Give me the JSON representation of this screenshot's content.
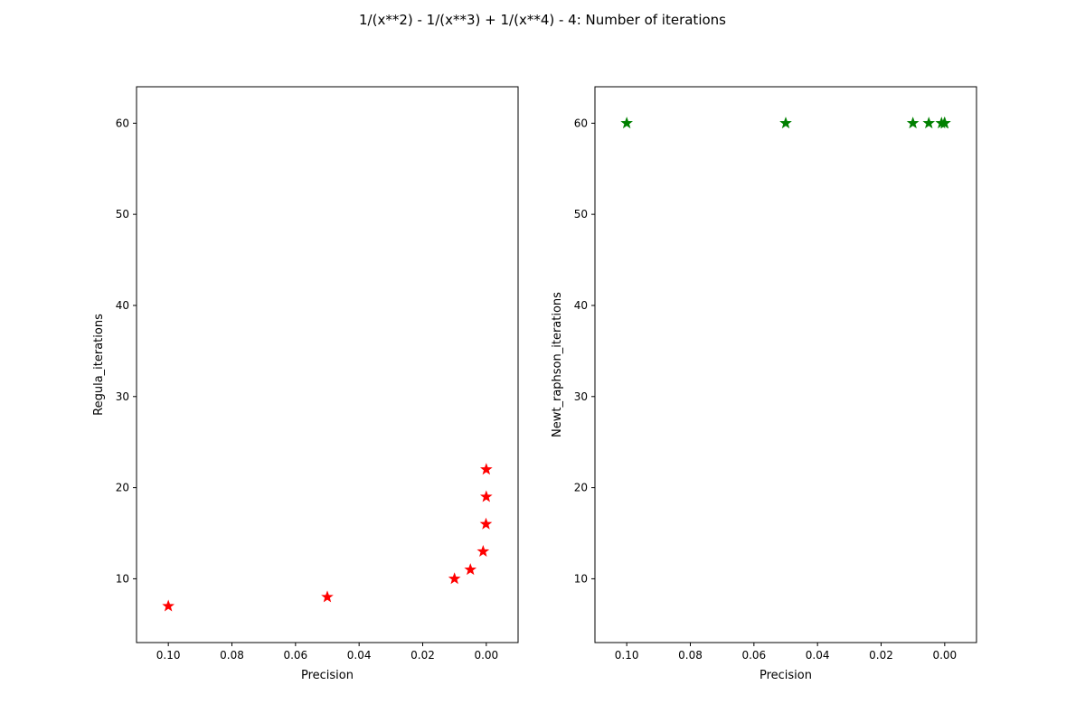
{
  "figure": {
    "title": "1/(x**2) - 1/(x**3) + 1/(x**4) - 4: Number of iterations"
  },
  "chart_data": [
    {
      "type": "scatter",
      "marker": "star",
      "color": "#ff0000",
      "xlabel": "Precision",
      "ylabel": "Regula_iterations",
      "xlim": [
        0.11,
        -0.01
      ],
      "ylim": [
        3,
        64
      ],
      "xticks": [
        0.1,
        0.08,
        0.06,
        0.04,
        0.02,
        0.0
      ],
      "xtick_labels": [
        "0.10",
        "0.08",
        "0.06",
        "0.04",
        "0.02",
        "0.00"
      ],
      "yticks": [
        10,
        20,
        30,
        40,
        50,
        60
      ],
      "ytick_labels": [
        "10",
        "20",
        "30",
        "40",
        "50",
        "60"
      ],
      "grid": false,
      "x": [
        0.1,
        0.05,
        0.01,
        0.005,
        0.001,
        0.0001,
        1e-05,
        1e-06
      ],
      "y": [
        7,
        8,
        10,
        11,
        13,
        16,
        19,
        22
      ]
    },
    {
      "type": "scatter",
      "marker": "star",
      "color": "#008000",
      "xlabel": "Precision",
      "ylabel": "Newt_raphson_iterations",
      "xlim": [
        0.11,
        -0.01
      ],
      "ylim": [
        3,
        64
      ],
      "xticks": [
        0.1,
        0.08,
        0.06,
        0.04,
        0.02,
        0.0
      ],
      "xtick_labels": [
        "0.10",
        "0.08",
        "0.06",
        "0.04",
        "0.02",
        "0.00"
      ],
      "yticks": [
        10,
        20,
        30,
        40,
        50,
        60
      ],
      "ytick_labels": [
        "10",
        "20",
        "30",
        "40",
        "50",
        "60"
      ],
      "grid": false,
      "x": [
        0.1,
        0.05,
        0.01,
        0.005,
        0.001,
        0.0001,
        1e-05,
        1e-06
      ],
      "y": [
        60,
        60,
        60,
        60,
        60,
        60,
        60,
        60
      ]
    }
  ]
}
